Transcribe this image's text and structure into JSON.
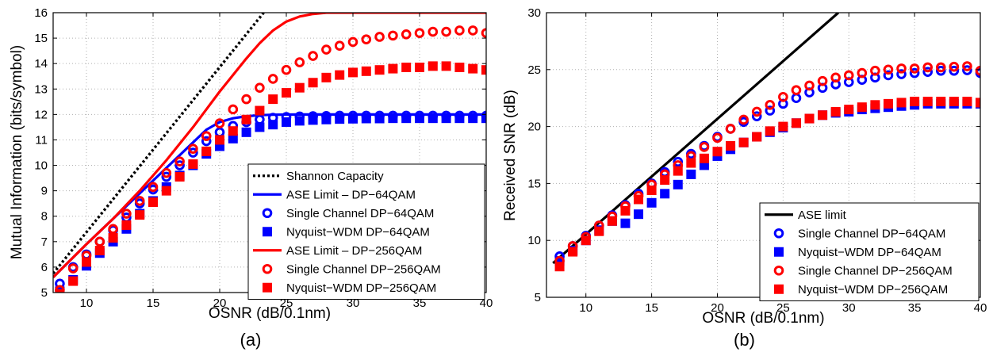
{
  "colors": {
    "blue": "#0000ff",
    "red": "#ff0000",
    "black": "#000000"
  },
  "chart_data": [
    {
      "type": "line",
      "panel_label": "(a)",
      "xlabel": "OSNR (dB/0.1nm)",
      "ylabel": "Mutual Information (bits/symbol)",
      "xlim": [
        7.5,
        40
      ],
      "ylim": [
        5,
        16
      ],
      "xticks": [
        10,
        15,
        20,
        25,
        30,
        35,
        40
      ],
      "yticks": [
        5,
        6,
        7,
        8,
        9,
        10,
        11,
        12,
        13,
        14,
        15,
        16
      ],
      "grid": true,
      "legend_position": "bottom-right",
      "series": [
        {
          "name": "Shannon Capacity",
          "kind": "line",
          "style": "dotted",
          "color": "#000000",
          "x": [
            7.5,
            23.3
          ],
          "y": [
            5.75,
            16
          ]
        },
        {
          "name": "ASE Limit – DP−64QAM",
          "kind": "line",
          "style": "solid",
          "color": "#0000ff",
          "x": [
            7.5,
            10,
            12,
            14,
            16,
            18,
            19,
            20,
            21,
            22,
            23,
            24,
            26,
            30,
            35,
            40
          ],
          "y": [
            5.6,
            6.9,
            7.9,
            8.9,
            9.9,
            10.9,
            11.4,
            11.7,
            11.85,
            11.93,
            11.97,
            11.99,
            12.0,
            12.0,
            12.0,
            12.0
          ]
        },
        {
          "name": "Single Channel DP−64QAM",
          "kind": "marker",
          "marker": "circle",
          "color": "#0000ff",
          "x": [
            8,
            9,
            10,
            11,
            12,
            13,
            14,
            15,
            16,
            17,
            18,
            19,
            20,
            21,
            22,
            23,
            24,
            25,
            26,
            27,
            28,
            29,
            30,
            31,
            32,
            33,
            34,
            35,
            36,
            37,
            38,
            39,
            40
          ],
          "y": [
            5.35,
            6.0,
            6.5,
            7.0,
            7.45,
            7.95,
            8.5,
            9.05,
            9.55,
            10.0,
            10.5,
            10.95,
            11.3,
            11.55,
            11.7,
            11.8,
            11.87,
            11.9,
            11.92,
            11.93,
            11.94,
            11.95,
            11.95,
            11.95,
            11.95,
            11.95,
            11.95,
            11.95,
            11.95,
            11.95,
            11.95,
            11.95,
            11.95
          ]
        },
        {
          "name": "Nyquist−WDM DP−64QAM",
          "kind": "marker",
          "marker": "square",
          "color": "#0000ff",
          "x": [
            8,
            9,
            10,
            11,
            12,
            13,
            14,
            15,
            16,
            17,
            18,
            19,
            20,
            21,
            22,
            23,
            24,
            25,
            26,
            27,
            28,
            29,
            30,
            31,
            32,
            33,
            34,
            35,
            36,
            37,
            38,
            39,
            40
          ],
          "y": [
            5.05,
            5.5,
            6.05,
            6.55,
            7.0,
            7.5,
            8.1,
            8.6,
            9.15,
            9.6,
            10.0,
            10.45,
            10.75,
            11.05,
            11.3,
            11.5,
            11.6,
            11.7,
            11.75,
            11.78,
            11.8,
            11.82,
            11.83,
            11.84,
            11.84,
            11.85,
            11.85,
            11.85,
            11.85,
            11.85,
            11.85,
            11.85,
            11.85
          ]
        },
        {
          "name": "ASE Limit – DP−256QAM",
          "kind": "line",
          "style": "solid",
          "color": "#ff0000",
          "x": [
            7.5,
            10,
            12,
            14,
            16,
            18,
            20,
            22,
            23,
            24,
            25,
            26,
            27,
            28,
            30,
            35,
            40
          ],
          "y": [
            5.6,
            6.9,
            7.9,
            9.0,
            10.2,
            11.5,
            12.9,
            14.2,
            14.8,
            15.3,
            15.65,
            15.85,
            15.95,
            16.0,
            16.0,
            16.0,
            16.0
          ]
        },
        {
          "name": "Single Channel DP−256QAM",
          "kind": "marker",
          "marker": "circle",
          "color": "#ff0000",
          "x": [
            8,
            9,
            10,
            11,
            12,
            13,
            14,
            15,
            16,
            17,
            18,
            19,
            20,
            21,
            22,
            23,
            24,
            25,
            26,
            27,
            28,
            29,
            30,
            31,
            32,
            33,
            34,
            35,
            36,
            37,
            38,
            39,
            40
          ],
          "y": [
            5.1,
            5.95,
            6.45,
            7.0,
            7.5,
            8.1,
            8.6,
            9.15,
            9.7,
            10.15,
            10.65,
            11.15,
            11.65,
            12.2,
            12.6,
            13.05,
            13.4,
            13.75,
            14.05,
            14.3,
            14.55,
            14.7,
            14.85,
            14.95,
            15.05,
            15.1,
            15.15,
            15.2,
            15.25,
            15.25,
            15.3,
            15.3,
            15.2
          ]
        },
        {
          "name": "Nyquist−WDM DP−256QAM",
          "kind": "marker",
          "marker": "square",
          "color": "#ff0000",
          "x": [
            8,
            9,
            10,
            11,
            12,
            13,
            14,
            15,
            16,
            17,
            18,
            19,
            20,
            21,
            22,
            23,
            24,
            25,
            26,
            27,
            28,
            29,
            30,
            31,
            32,
            33,
            34,
            35,
            36,
            37,
            38,
            39,
            40
          ],
          "y": [
            4.95,
            5.45,
            6.2,
            6.65,
            7.15,
            7.65,
            8.05,
            8.55,
            9.0,
            9.55,
            10.05,
            10.55,
            11.0,
            11.35,
            11.8,
            12.15,
            12.6,
            12.85,
            13.05,
            13.25,
            13.45,
            13.55,
            13.65,
            13.7,
            13.75,
            13.8,
            13.85,
            13.85,
            13.9,
            13.9,
            13.85,
            13.8,
            13.75
          ]
        }
      ]
    },
    {
      "type": "line",
      "panel_label": "(b)",
      "xlabel": "OSNR (dB/0.1nm)",
      "ylabel": "Received SNR (dB)",
      "xlim": [
        7,
        40
      ],
      "ylim": [
        5,
        30
      ],
      "xticks": [
        10,
        15,
        20,
        25,
        30,
        35,
        40
      ],
      "yticks": [
        5,
        10,
        15,
        20,
        25,
        30
      ],
      "grid": true,
      "legend_position": "bottom-right",
      "series": [
        {
          "name": "ASE limit",
          "kind": "line",
          "style": "solid",
          "color": "#000000",
          "x": [
            7.5,
            29.2
          ],
          "y": [
            8.0,
            30
          ]
        },
        {
          "name": "Single Channel DP−64QAM",
          "kind": "marker",
          "marker": "circle",
          "color": "#0000ff",
          "x": [
            8,
            9,
            10,
            11,
            12,
            13,
            14,
            15,
            16,
            17,
            18,
            19,
            20,
            21,
            22,
            23,
            24,
            25,
            26,
            27,
            28,
            29,
            30,
            31,
            32,
            33,
            34,
            35,
            36,
            37,
            38,
            39,
            40
          ],
          "y": [
            8.6,
            9.5,
            10.4,
            11.3,
            12.2,
            13.1,
            14.1,
            15.0,
            16.0,
            16.9,
            17.6,
            18.3,
            19.1,
            19.8,
            20.4,
            20.9,
            21.4,
            22.0,
            22.5,
            23.0,
            23.4,
            23.7,
            23.9,
            24.1,
            24.3,
            24.5,
            24.6,
            24.7,
            24.8,
            24.9,
            24.9,
            24.95,
            24.7
          ]
        },
        {
          "name": "Nyquist−WDM DP−64QAM",
          "kind": "marker",
          "marker": "square",
          "color": "#0000ff",
          "x": [
            8,
            9,
            10,
            11,
            12,
            13,
            14,
            15,
            16,
            17,
            18,
            19,
            20,
            21,
            22,
            23,
            24,
            25,
            26,
            27,
            28,
            29,
            30,
            31,
            32,
            33,
            34,
            35,
            36,
            37,
            38,
            39,
            40
          ],
          "y": [
            8.2,
            9.1,
            10.0,
            10.9,
            11.7,
            11.5,
            12.3,
            13.3,
            14.1,
            14.9,
            15.8,
            16.6,
            17.4,
            18.0,
            18.6,
            19.1,
            19.5,
            19.9,
            20.3,
            20.7,
            21.0,
            21.2,
            21.3,
            21.5,
            21.6,
            21.7,
            21.8,
            21.9,
            22.0,
            22.0,
            22.0,
            22.0,
            22.0
          ]
        },
        {
          "name": "Single Channel DP−256QAM",
          "kind": "marker",
          "marker": "circle",
          "color": "#ff0000",
          "x": [
            8,
            9,
            10,
            11,
            12,
            13,
            14,
            15,
            16,
            17,
            18,
            19,
            20,
            21,
            22,
            23,
            24,
            25,
            26,
            27,
            28,
            29,
            30,
            31,
            32,
            33,
            34,
            35,
            36,
            37,
            38,
            39,
            40
          ],
          "y": [
            8.2,
            9.5,
            10.3,
            11.3,
            12.1,
            13.0,
            13.9,
            14.9,
            15.8,
            16.6,
            17.4,
            18.2,
            19.0,
            19.8,
            20.6,
            21.3,
            21.9,
            22.6,
            23.2,
            23.6,
            24.0,
            24.3,
            24.5,
            24.7,
            24.9,
            25.0,
            25.1,
            25.1,
            25.2,
            25.2,
            25.25,
            25.3,
            24.9
          ]
        },
        {
          "name": "Nyquist−WDM DP−256QAM",
          "kind": "marker",
          "marker": "square",
          "color": "#ff0000",
          "x": [
            8,
            9,
            10,
            11,
            12,
            13,
            14,
            15,
            16,
            17,
            18,
            19,
            20,
            21,
            22,
            23,
            24,
            25,
            26,
            27,
            28,
            29,
            30,
            31,
            32,
            33,
            34,
            35,
            36,
            37,
            38,
            39,
            40
          ],
          "y": [
            7.7,
            9.0,
            10.0,
            10.8,
            11.7,
            12.6,
            13.6,
            14.4,
            15.3,
            16.1,
            16.8,
            17.2,
            17.8,
            18.3,
            18.6,
            19.1,
            19.6,
            20.0,
            20.3,
            20.7,
            21.0,
            21.3,
            21.5,
            21.7,
            21.9,
            22.0,
            22.1,
            22.2,
            22.2,
            22.2,
            22.2,
            22.2,
            22.1
          ]
        }
      ]
    }
  ]
}
